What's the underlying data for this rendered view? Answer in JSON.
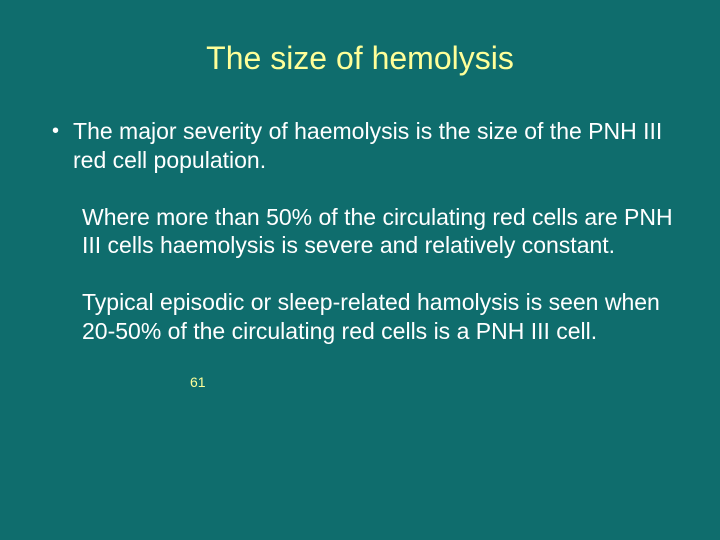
{
  "background_color": "#0f6d6d",
  "title_color": "#ffff99",
  "body_text_color": "#ffffff",
  "pagenum_color": "#ffff99",
  "title_fontsize": 32,
  "body_fontsize": 23,
  "pagenum_fontsize": 14,
  "title": "The size of hemolysis",
  "bullet_item": "The major severity of haemolysis is the size of the PNH III red cell population.",
  "para1": "Where more than 50% of the circulating red cells are PNH III cells haemolysis is severe and relatively constant.",
  "para2": "Typical episodic or sleep-related hamolysis is seen when 20-50% of the circulating red cells is a PNH III cell.",
  "page_number": "61"
}
